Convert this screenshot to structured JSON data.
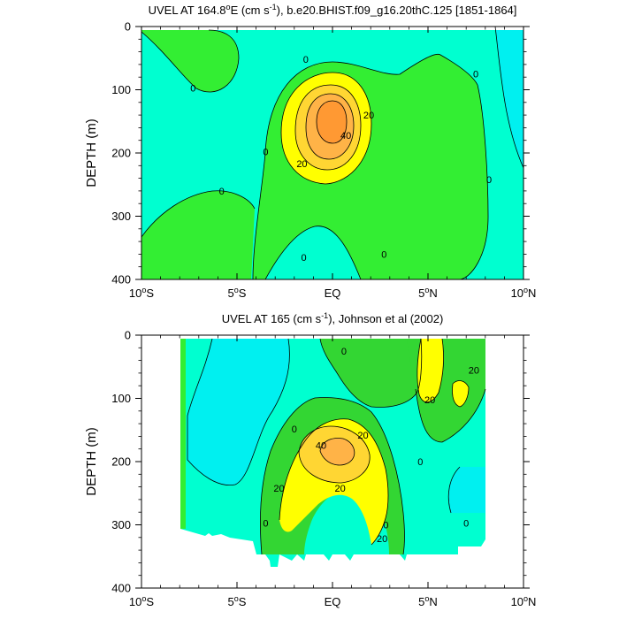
{
  "palette": {
    "cyan": "#00f0f0",
    "aqua": "#00ffd0",
    "green_light": "#33ee33",
    "green": "#33d633",
    "yellow": "#ffff00",
    "gold": "#ffd633",
    "orange_light": "#ffb347",
    "orange": "#ff9933",
    "line": "#000000"
  },
  "chart_data": [
    {
      "type": "contour",
      "title_pre": "UVEL AT 164.8",
      "title_sup": "o",
      "title_mid": "E (cm s",
      "title_sup2": "-1",
      "title_post": "), b.e20.BHIST.f09_g16.20thC.125 [1851-1864]",
      "ylabel": "DEPTH (m)",
      "xlim": [
        -10,
        10
      ],
      "ylim": [
        400,
        0
      ],
      "y_reversed": true,
      "x_ticks": [
        {
          "value": -10,
          "num": "10",
          "sup": "o",
          "hemi": "S"
        },
        {
          "value": -5,
          "num": "5",
          "sup": "o",
          "hemi": "S"
        },
        {
          "value": 0,
          "num": "EQ",
          "sup": "",
          "hemi": ""
        },
        {
          "value": 5,
          "num": "5",
          "sup": "o",
          "hemi": "N"
        },
        {
          "value": 10,
          "num": "10",
          "sup": "o",
          "hemi": "N"
        }
      ],
      "y_ticks": [
        "0",
        "100",
        "200",
        "300",
        "400"
      ],
      "y_tick_values": [
        0,
        100,
        200,
        300,
        400
      ],
      "contour_levels_cm_s": [
        0,
        10,
        20,
        30,
        40,
        50
      ],
      "contour_labels": [
        {
          "text": "0",
          "x": -7.3,
          "y": 97
        },
        {
          "text": "0",
          "x": -5.8,
          "y": 260
        },
        {
          "text": "0",
          "x": -3.5,
          "y": 198
        },
        {
          "text": "0",
          "x": -1.4,
          "y": 52
        },
        {
          "text": "0",
          "x": -1.5,
          "y": 365
        },
        {
          "text": "0",
          "x": 2.7,
          "y": 360
        },
        {
          "text": "0",
          "x": 7.5,
          "y": 75
        },
        {
          "text": "0",
          "x": 8.2,
          "y": 242
        },
        {
          "text": "20",
          "x": 1.9,
          "y": 140
        },
        {
          "text": "40",
          "x": 0.7,
          "y": 172
        },
        {
          "text": "20",
          "x": -1.6,
          "y": 217
        }
      ]
    },
    {
      "type": "contour",
      "title_pre": "UVEL AT 165 (cm s",
      "title_sup": "-1",
      "title_mid": "), Johnson et al (2002)",
      "title_sup2": "",
      "title_post": "",
      "ylabel": "DEPTH (m)",
      "xlim": [
        -10,
        10
      ],
      "ylim": [
        400,
        0
      ],
      "y_reversed": true,
      "x_ticks": [
        {
          "value": -10,
          "num": "10",
          "sup": "o",
          "hemi": "S"
        },
        {
          "value": -5,
          "num": "5",
          "sup": "o",
          "hemi": "S"
        },
        {
          "value": 0,
          "num": "EQ",
          "sup": "",
          "hemi": ""
        },
        {
          "value": 5,
          "num": "5",
          "sup": "o",
          "hemi": "N"
        },
        {
          "value": 10,
          "num": "10",
          "sup": "o",
          "hemi": "N"
        }
      ],
      "y_ticks": [
        "0",
        "100",
        "200",
        "300",
        "400"
      ],
      "y_tick_values": [
        0,
        100,
        200,
        300,
        400
      ],
      "contour_levels_cm_s": [
        0,
        10,
        20,
        30,
        40
      ],
      "data_extent_lon": [
        -8,
        8
      ],
      "contour_labels": [
        {
          "text": "0",
          "x": 0.6,
          "y": 25
        },
        {
          "text": "0",
          "x": -2,
          "y": 148
        },
        {
          "text": "0",
          "x": -3.5,
          "y": 297
        },
        {
          "text": "0",
          "x": 2.8,
          "y": 300
        },
        {
          "text": "0",
          "x": 4.6,
          "y": 200
        },
        {
          "text": "0",
          "x": 7,
          "y": 297
        },
        {
          "text": "20",
          "x": 5.1,
          "y": 102
        },
        {
          "text": "20",
          "x": 7.4,
          "y": 55
        },
        {
          "text": "40",
          "x": -0.6,
          "y": 174
        },
        {
          "text": "20",
          "x": 1.6,
          "y": 158
        },
        {
          "text": "20",
          "x": -2.8,
          "y": 242
        },
        {
          "text": "20",
          "x": 0.4,
          "y": 242
        },
        {
          "text": "20",
          "x": 2.6,
          "y": 322
        }
      ]
    }
  ]
}
